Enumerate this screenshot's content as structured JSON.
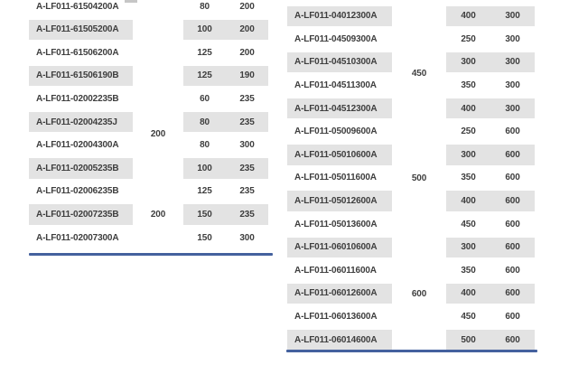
{
  "colors": {
    "row_stripe": "#e3e3e3",
    "text": "#3e3e3e",
    "bottom_rule": "#44619e"
  },
  "left_table": {
    "rows": [
      {
        "part": "A-LF011-61504200A",
        "col3": "80",
        "col4": "200"
      },
      {
        "part": "A-LF011-61505200A",
        "col3": "100",
        "col4": "200"
      },
      {
        "part": "A-LF011-61506200A",
        "col3": "125",
        "col4": "200"
      },
      {
        "part": "A-LF011-61506190B",
        "col3": "125",
        "col4": "190"
      },
      {
        "part": "A-LF011-02002235B",
        "col3": "60",
        "col4": "235"
      },
      {
        "part": "A-LF011-02004235J",
        "col3": "80",
        "col4": "235"
      },
      {
        "part": "A-LF011-02004300A",
        "col3": "80",
        "col4": "300"
      },
      {
        "part": "A-LF011-02005235B",
        "col3": "100",
        "col4": "235"
      },
      {
        "part": "A-LF011-02006235B",
        "col3": "125",
        "col4": "235"
      },
      {
        "part": "A-LF011-02007235B",
        "col3": "150",
        "col4": "235"
      },
      {
        "part": "A-LF011-02007300A",
        "col3": "150",
        "col4": "300"
      }
    ],
    "groups": [
      {
        "label": "200",
        "from_row": 5,
        "to_row": 8
      },
      {
        "label": "200",
        "from_row": 9,
        "to_row": 11
      }
    ]
  },
  "right_table": {
    "rows": [
      {
        "part": "A-LF011-04012300A",
        "col3": "400",
        "col4": "300"
      },
      {
        "part": "A-LF011-04509300A",
        "col3": "250",
        "col4": "300"
      },
      {
        "part": "A-LF011-04510300A",
        "col3": "300",
        "col4": "300"
      },
      {
        "part": "A-LF011-04511300A",
        "col3": "350",
        "col4": "300"
      },
      {
        "part": "A-LF011-04512300A",
        "col3": "400",
        "col4": "300"
      },
      {
        "part": "A-LF011-05009600A",
        "col3": "250",
        "col4": "600"
      },
      {
        "part": "A-LF011-05010600A",
        "col3": "300",
        "col4": "600"
      },
      {
        "part": "A-LF011-05011600A",
        "col3": "350",
        "col4": "600"
      },
      {
        "part": "A-LF011-05012600A",
        "col3": "400",
        "col4": "600"
      },
      {
        "part": "A-LF011-05013600A",
        "col3": "450",
        "col4": "600"
      },
      {
        "part": "A-LF011-06010600A",
        "col3": "300",
        "col4": "600"
      },
      {
        "part": "A-LF011-06011600A",
        "col3": "350",
        "col4": "600"
      },
      {
        "part": "A-LF011-06012600A",
        "col3": "400",
        "col4": "600"
      },
      {
        "part": "A-LF011-06013600A",
        "col3": "450",
        "col4": "600"
      },
      {
        "part": "A-LF011-06014600A",
        "col3": "500",
        "col4": "600"
      }
    ],
    "groups": [
      {
        "label": "450",
        "from_row": 2,
        "to_row": 5
      },
      {
        "label": "500",
        "from_row": 6,
        "to_row": 10
      },
      {
        "label": "600",
        "from_row": 11,
        "to_row": 15
      }
    ]
  }
}
